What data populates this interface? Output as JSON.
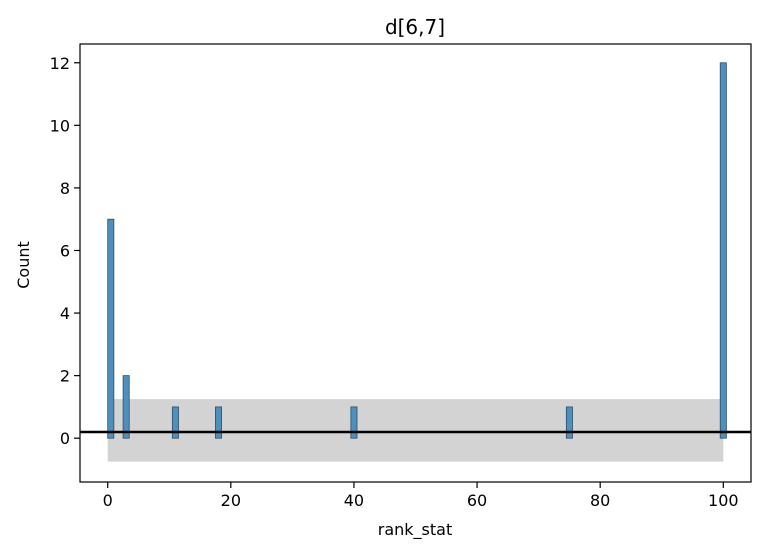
{
  "chart_data": {
    "type": "bar",
    "title": "d[6,7]",
    "xlabel": "rank_stat",
    "ylabel": "Count",
    "xlim": [
      -4.5,
      104.5
    ],
    "ylim": [
      -1.4,
      12.6
    ],
    "xticks": [
      0,
      20,
      40,
      60,
      80,
      100
    ],
    "yticks": [
      0,
      2,
      4,
      6,
      8,
      10,
      12
    ],
    "bin_width": 1,
    "bars": [
      {
        "x": 0,
        "count": 7
      },
      {
        "x": 2.5,
        "count": 2
      },
      {
        "x": 10.5,
        "count": 1
      },
      {
        "x": 17.5,
        "count": 1
      },
      {
        "x": 39.5,
        "count": 1
      },
      {
        "x": 74.5,
        "count": 1
      },
      {
        "x": 99.5,
        "count": 12
      }
    ],
    "band": {
      "x_range": [
        0,
        100
      ],
      "y_range": [
        -0.75,
        1.25
      ]
    },
    "reference_line": {
      "y": 0.2
    },
    "grid": false,
    "colors": {
      "bar_fill": "#4e8fbc",
      "bar_edge": "#2c4f6b",
      "band": "#d3d3d3",
      "reference_line": "#000000"
    }
  }
}
